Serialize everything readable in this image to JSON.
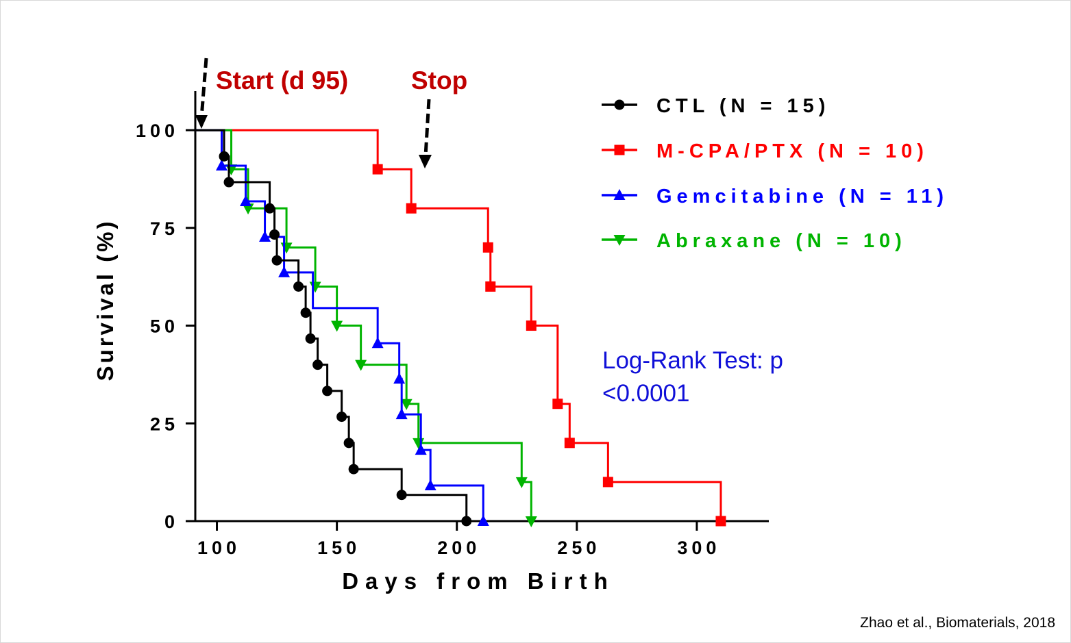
{
  "chart_data": {
    "type": "line",
    "subtype": "kaplan-meier",
    "xlabel": "Days from Birth",
    "ylabel": "Survival (%)",
    "xlim": [
      91,
      330
    ],
    "ylim": [
      0,
      110
    ],
    "xticks": [
      100,
      150,
      200,
      250,
      300
    ],
    "yticks": [
      0,
      25,
      50,
      75,
      100
    ],
    "series": [
      {
        "name": "CTL (N = 15)",
        "color": "#000000",
        "marker": "circle",
        "steps": [
          [
            91,
            100
          ],
          [
            103,
            93.3
          ],
          [
            105,
            86.7
          ],
          [
            122,
            80
          ],
          [
            124,
            73.3
          ],
          [
            125,
            66.7
          ],
          [
            134,
            60
          ],
          [
            137,
            53.3
          ],
          [
            139,
            46.7
          ],
          [
            142,
            40
          ],
          [
            146,
            33.3
          ],
          [
            152,
            26.7
          ],
          [
            155,
            20
          ],
          [
            157,
            13.3
          ],
          [
            177,
            6.7
          ],
          [
            204,
            0
          ]
        ],
        "markers": [
          [
            103,
            93.3
          ],
          [
            105,
            86.7
          ],
          [
            122,
            80
          ],
          [
            124,
            73.3
          ],
          [
            125,
            66.7
          ],
          [
            134,
            60
          ],
          [
            137,
            53.3
          ],
          [
            139,
            46.7
          ],
          [
            142,
            40
          ],
          [
            146,
            33.3
          ],
          [
            152,
            26.7
          ],
          [
            155,
            20
          ],
          [
            157,
            13.3
          ],
          [
            177,
            6.7
          ],
          [
            204,
            0
          ]
        ]
      },
      {
        "name": "M-CPA/PTX (N = 10)",
        "color": "#ff0000",
        "marker": "square",
        "steps": [
          [
            91,
            100
          ],
          [
            167,
            90
          ],
          [
            181,
            80
          ],
          [
            213,
            70
          ],
          [
            214,
            60
          ],
          [
            231,
            50
          ],
          [
            242,
            30
          ],
          [
            247,
            20
          ],
          [
            263,
            10
          ],
          [
            310,
            0
          ]
        ],
        "markers": [
          [
            167,
            90
          ],
          [
            181,
            80
          ],
          [
            213,
            70
          ],
          [
            214,
            60
          ],
          [
            231,
            50
          ],
          [
            242,
            30
          ],
          [
            247,
            20
          ],
          [
            263,
            10
          ],
          [
            310,
            0
          ]
        ]
      },
      {
        "name": "Gemcitabine (N = 11)",
        "color": "#0000ff",
        "marker": "triangle-up",
        "steps": [
          [
            91,
            100
          ],
          [
            102,
            90.9
          ],
          [
            112,
            81.8
          ],
          [
            120,
            72.7
          ],
          [
            128,
            63.6
          ],
          [
            140,
            54.5
          ],
          [
            167,
            45.5
          ],
          [
            176,
            36.4
          ],
          [
            177,
            27.3
          ],
          [
            185,
            18.2
          ],
          [
            189,
            9.1
          ],
          [
            211,
            0
          ]
        ],
        "markers": [
          [
            102,
            90.9
          ],
          [
            112,
            81.8
          ],
          [
            120,
            72.7
          ],
          [
            128,
            63.6
          ],
          [
            167,
            45.5
          ],
          [
            176,
            36.4
          ],
          [
            177,
            27.3
          ],
          [
            185,
            18.2
          ],
          [
            189,
            9.1
          ],
          [
            211,
            0
          ]
        ]
      },
      {
        "name": "Abraxane (N = 10)",
        "color": "#00b400",
        "marker": "triangle-down",
        "steps": [
          [
            91,
            100
          ],
          [
            106,
            90
          ],
          [
            113,
            80
          ],
          [
            129,
            70
          ],
          [
            141,
            60
          ],
          [
            150,
            50
          ],
          [
            160,
            40
          ],
          [
            179,
            30
          ],
          [
            184,
            20
          ],
          [
            227,
            10
          ],
          [
            231,
            0
          ]
        ],
        "markers": [
          [
            106,
            90
          ],
          [
            113,
            80
          ],
          [
            129,
            70
          ],
          [
            141,
            60
          ],
          [
            150,
            50
          ],
          [
            160,
            40
          ],
          [
            179,
            30
          ],
          [
            184,
            20
          ],
          [
            227,
            10
          ],
          [
            231,
            0
          ]
        ]
      }
    ],
    "annotations": {
      "start": "Start (d 95)",
      "stop": "Stop",
      "logrank_line1": "Log-Rank Test: p",
      "logrank_line2": "<0.0001"
    },
    "legend_position": "top-right"
  },
  "citation": "Zhao et al., Biomaterials, 2018"
}
